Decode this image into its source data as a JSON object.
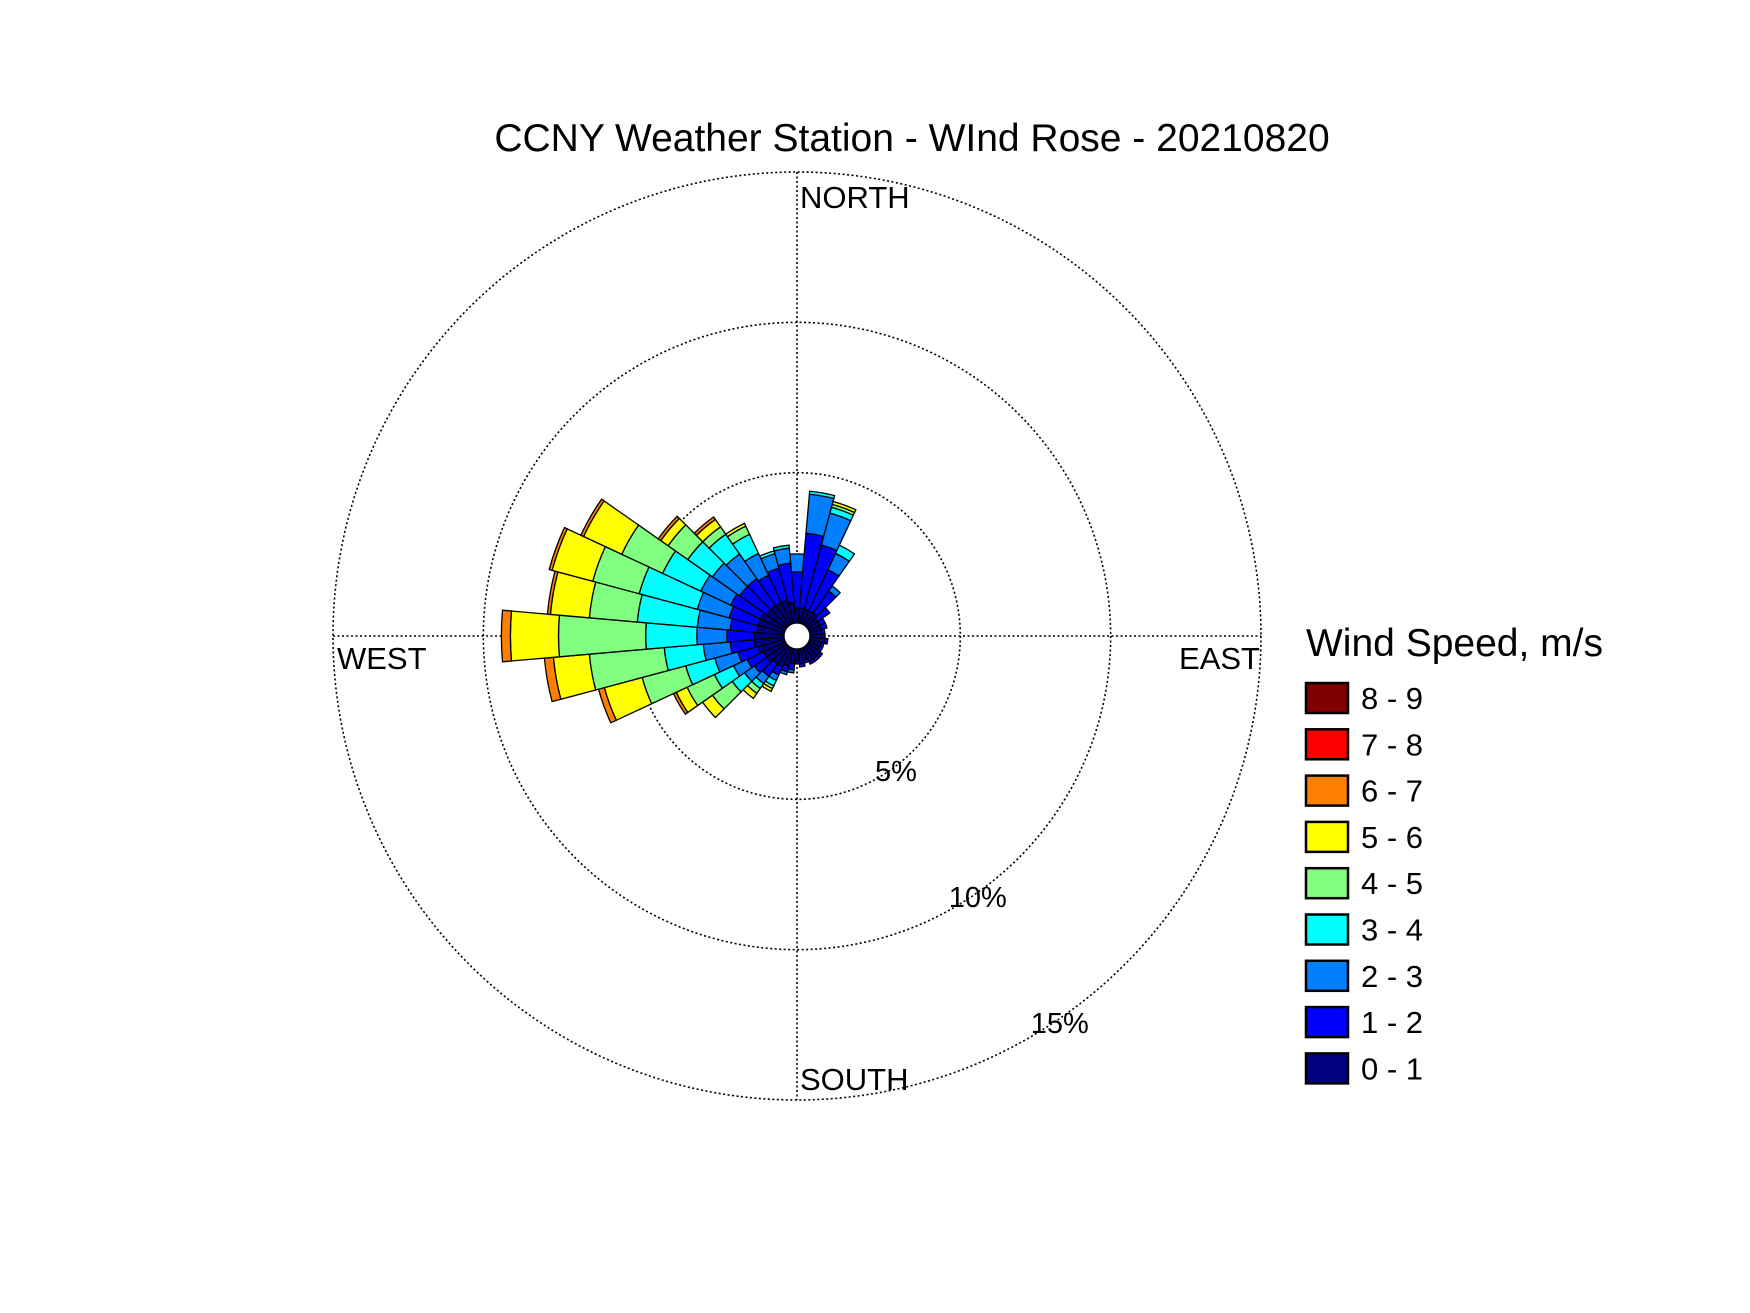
{
  "chart_data": {
    "type": "wind-rose",
    "title": "CCNY Weather Station - WInd Rose - 20210820",
    "direction_labels": {
      "north": "NORTH",
      "east": "EAST",
      "south": "SOUTH",
      "west": "WEST"
    },
    "radial_unit": "percent of observations",
    "radial_ticks": [
      {
        "value": 5,
        "label": "5%"
      },
      {
        "value": 10,
        "label": "10%"
      },
      {
        "value": 15,
        "label": "15%"
      }
    ],
    "rmax": 15,
    "grid": true,
    "bin_width_deg": 10,
    "legend": {
      "title": "Wind Speed, m/s",
      "placement": "right",
      "bins": [
        {
          "label": "8 - 9",
          "color": "#800000"
        },
        {
          "label": "7 - 8",
          "color": "#ff0000"
        },
        {
          "label": "6 - 7",
          "color": "#ff8000"
        },
        {
          "label": "5 - 6",
          "color": "#ffff00"
        },
        {
          "label": "4 - 5",
          "color": "#80ff80"
        },
        {
          "label": "3 - 4",
          "color": "#00ffff"
        },
        {
          "label": "2 - 3",
          "color": "#0080ff"
        },
        {
          "label": "1 - 2",
          "color": "#0000ff"
        },
        {
          "label": "0 - 1",
          "color": "#000080"
        }
      ]
    },
    "speed_bins_order": [
      "0 - 1",
      "1 - 2",
      "2 - 3",
      "3 - 4",
      "4 - 5",
      "5 - 6",
      "6 - 7",
      "7 - 8",
      "8 - 9"
    ],
    "sectors": [
      {
        "dir": 0,
        "values": [
          0.5,
          1.2,
          0.6,
          0,
          0,
          0,
          0,
          0,
          0
        ]
      },
      {
        "dir": 10,
        "values": [
          0.5,
          2.5,
          1.3,
          0.1,
          0,
          0,
          0,
          0,
          0
        ]
      },
      {
        "dir": 20,
        "values": [
          0.5,
          2.2,
          1.1,
          0.2,
          0.1,
          0.1,
          0,
          0,
          0
        ]
      },
      {
        "dir": 30,
        "values": [
          0.5,
          1.5,
          0.6,
          0.3,
          0,
          0,
          0,
          0,
          0
        ]
      },
      {
        "dir": 40,
        "values": [
          0.5,
          0.9,
          0.2,
          0,
          0,
          0,
          0,
          0,
          0
        ]
      },
      {
        "dir": 50,
        "values": [
          0.4,
          0.5,
          0,
          0,
          0,
          0,
          0,
          0,
          0
        ]
      },
      {
        "dir": 60,
        "values": [
          0.4,
          0.2,
          0,
          0,
          0,
          0,
          0,
          0,
          0
        ]
      },
      {
        "dir": 70,
        "values": [
          0.4,
          0.2,
          0,
          0,
          0,
          0,
          0,
          0,
          0
        ]
      },
      {
        "dir": 80,
        "values": [
          0.4,
          0.1,
          0,
          0,
          0,
          0,
          0,
          0,
          0
        ]
      },
      {
        "dir": 90,
        "values": [
          0.4,
          0.1,
          0,
          0,
          0,
          0,
          0,
          0,
          0
        ]
      },
      {
        "dir": 100,
        "values": [
          0.5,
          0.1,
          0,
          0,
          0,
          0,
          0,
          0,
          0
        ]
      },
      {
        "dir": 110,
        "values": [
          0.4,
          0.1,
          0,
          0,
          0,
          0,
          0,
          0,
          0
        ]
      },
      {
        "dir": 120,
        "values": [
          0.4,
          0.1,
          0,
          0,
          0,
          0,
          0,
          0,
          0
        ]
      },
      {
        "dir": 130,
        "values": [
          0.5,
          0.1,
          0,
          0,
          0,
          0,
          0,
          0,
          0
        ]
      },
      {
        "dir": 140,
        "values": [
          0.5,
          0.1,
          0,
          0,
          0,
          0,
          0,
          0,
          0
        ]
      },
      {
        "dir": 150,
        "values": [
          0.5,
          0.1,
          0,
          0,
          0,
          0,
          0,
          0,
          0
        ]
      },
      {
        "dir": 160,
        "values": [
          0.4,
          0.1,
          0,
          0,
          0,
          0,
          0,
          0,
          0
        ]
      },
      {
        "dir": 170,
        "values": [
          0.5,
          0.1,
          0,
          0,
          0,
          0,
          0,
          0,
          0
        ]
      },
      {
        "dir": 180,
        "values": [
          0.4,
          0.1,
          0,
          0,
          0,
          0,
          0,
          0,
          0
        ]
      },
      {
        "dir": 190,
        "values": [
          0.5,
          0.2,
          0.1,
          0,
          0,
          0,
          0,
          0,
          0
        ]
      },
      {
        "dir": 200,
        "values": [
          0.6,
          0.2,
          0.1,
          0,
          0,
          0,
          0,
          0,
          0
        ]
      },
      {
        "dir": 210,
        "values": [
          0.7,
          0.3,
          0.2,
          0.2,
          0.1,
          0.1,
          0,
          0,
          0
        ]
      },
      {
        "dir": 220,
        "values": [
          0.7,
          0.5,
          0.3,
          0.2,
          0.2,
          0.2,
          0,
          0,
          0
        ]
      },
      {
        "dir": 230,
        "values": [
          0.8,
          0.5,
          0.4,
          0.5,
          0.8,
          0.4,
          0,
          0,
          0
        ]
      },
      {
        "dir": 240,
        "values": [
          0.8,
          0.6,
          0.5,
          0.7,
          1.0,
          0.4,
          0.1,
          0,
          0
        ]
      },
      {
        "dir": 250,
        "values": [
          0.9,
          0.7,
          0.8,
          1.0,
          1.5,
          1.3,
          0.2,
          0,
          0
        ]
      },
      {
        "dir": 260,
        "values": [
          1.0,
          0.8,
          0.9,
          1.3,
          2.5,
          1.2,
          0.3,
          0,
          0
        ]
      },
      {
        "dir": 270,
        "values": [
          1.0,
          0.9,
          1.0,
          1.7,
          2.9,
          1.6,
          0.3,
          0,
          0
        ]
      },
      {
        "dir": 280,
        "values": [
          0.9,
          0.9,
          1.1,
          2.0,
          1.6,
          1.3,
          0.1,
          0,
          0
        ]
      },
      {
        "dir": 290,
        "values": [
          0.9,
          1.0,
          1.1,
          2.0,
          1.6,
          1.4,
          0.1,
          0,
          0
        ]
      },
      {
        "dir": 300,
        "values": [
          0.9,
          1.1,
          1.1,
          1.4,
          1.5,
          1.4,
          0.1,
          0,
          0
        ]
      },
      {
        "dir": 310,
        "values": [
          0.8,
          1.1,
          1.1,
          1.0,
          0.8,
          0.3,
          0.1,
          0,
          0
        ]
      },
      {
        "dir": 320,
        "values": [
          0.8,
          1.1,
          1.0,
          0.8,
          0.3,
          0.3,
          0.1,
          0,
          0
        ]
      },
      {
        "dir": 330,
        "values": [
          0.8,
          1.0,
          0.8,
          0.7,
          0.3,
          0.1,
          0,
          0,
          0
        ]
      },
      {
        "dir": 340,
        "values": [
          0.8,
          1.1,
          0.5,
          0.1,
          0,
          0,
          0,
          0,
          0
        ]
      },
      {
        "dir": 350,
        "values": [
          0.7,
          1.3,
          0.5,
          0.1,
          0,
          0,
          0,
          0,
          0
        ]
      }
    ]
  }
}
